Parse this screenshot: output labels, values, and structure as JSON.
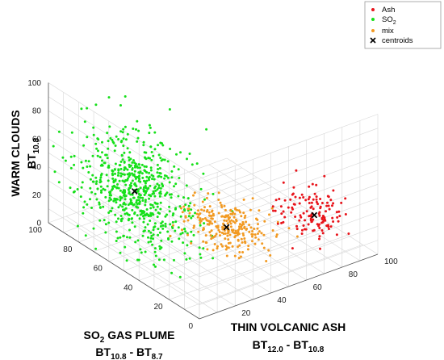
{
  "chart_data": {
    "type": "scatter",
    "projection": "3d",
    "axes": {
      "x": {
        "label_parts": [
          "THIN VOLCANIC ASH",
          "BT",
          "12.0",
          " - BT",
          "10.8"
        ],
        "range": [
          0,
          100
        ],
        "ticks": [
          "20",
          "40",
          "60",
          "80",
          "100"
        ]
      },
      "y": {
        "label_parts": [
          "SO",
          "2",
          " GAS PLUME",
          "BT",
          "10.8",
          " - BT",
          "8.7"
        ],
        "range": [
          0,
          100
        ],
        "ticks": [
          "0",
          "20",
          "40",
          "60",
          "80",
          "100"
        ]
      },
      "z": {
        "label_parts": [
          "WARM CLOUDS",
          "BT",
          "10.8"
        ],
        "range": [
          0,
          100
        ],
        "ticks": [
          "0",
          "20",
          "40",
          "60",
          "80",
          "100"
        ]
      }
    },
    "grid": true,
    "legend": {
      "position": "top-right"
    },
    "series": [
      {
        "name": "Ash",
        "name_sub": "",
        "color": "#e8141b",
        "marker": "dot",
        "clusters": [
          {
            "count": 130,
            "center": [
              69.4,
              5.9,
              38.0
            ],
            "spread": [
              6,
              11,
              9
            ]
          }
        ]
      },
      {
        "name": "SO",
        "name_sub": "2",
        "color": "#16e01a",
        "marker": "dot",
        "clusters": [
          {
            "count": 650,
            "center": [
              17.0,
              63.0,
              40.0
            ],
            "spread": [
              9,
              16,
              19
            ]
          }
        ]
      },
      {
        "name": "mix",
        "name_sub": "",
        "color": "#f29a22",
        "marker": "dot",
        "clusters": [
          {
            "count": 250,
            "center": [
              43.3,
              33.2,
              22.7
            ],
            "spread": [
              8,
              10,
              6
            ]
          }
        ]
      },
      {
        "name": "centroids",
        "name_sub": "",
        "color": "#000000",
        "marker": "x",
        "points": [
          {
            "x": 17.0,
            "y": 63.0,
            "z": 40.0
          },
          {
            "x": 43.3,
            "y": 33.2,
            "z": 22.7
          },
          {
            "x": 69.4,
            "y": 5.9,
            "z": 38.0
          }
        ]
      }
    ]
  }
}
